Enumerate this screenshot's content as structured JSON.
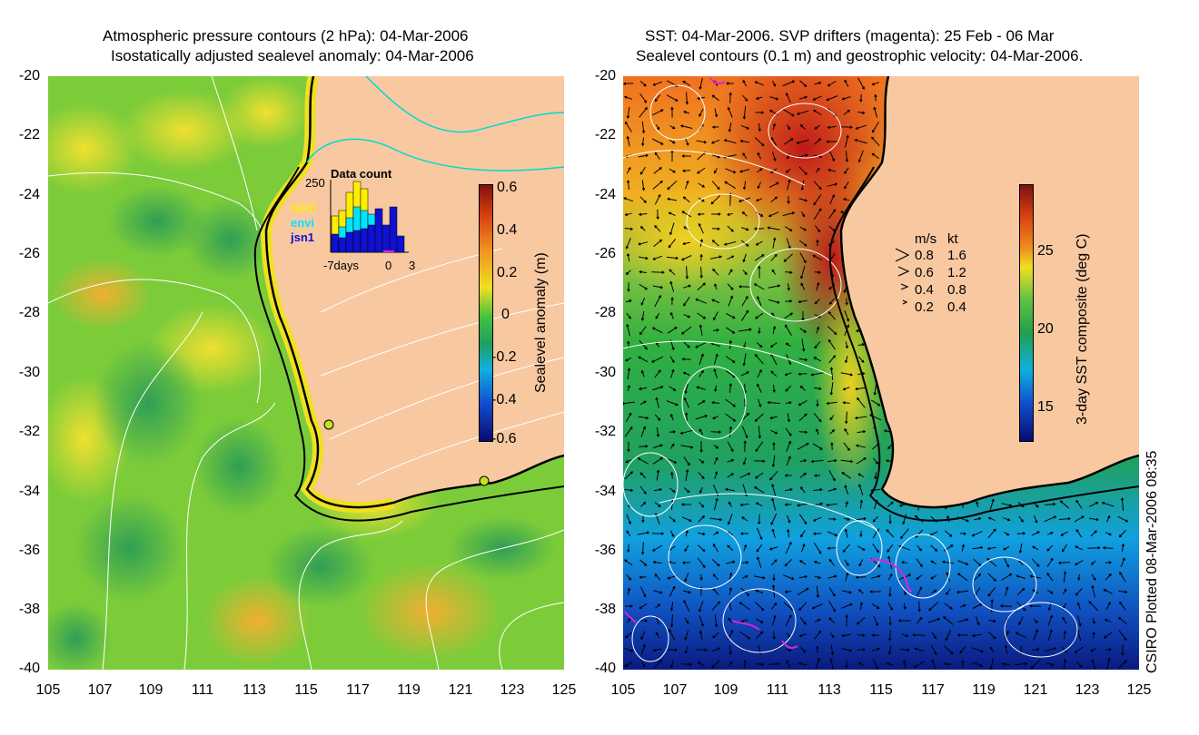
{
  "left_panel": {
    "title_line1": "Atmospheric pressure contours (2 hPa): 04-Mar-2006",
    "title_line2": "Isostatically adjusted sealevel anomaly: 04-Mar-2006",
    "colorbar_label": "Sealevel anomaly (m)",
    "colorbar_ticks": [
      "0.6",
      "0.4",
      "0.2",
      "0",
      "-0.2",
      "-0.4",
      "-0.6"
    ],
    "inset": {
      "title": "Data count",
      "y_max_label": "250",
      "satellites": [
        {
          "name": "GFO",
          "color": "#ffee00"
        },
        {
          "name": "envi",
          "color": "#00e5ff"
        },
        {
          "name": "jsn1",
          "color": "#1010d0"
        }
      ],
      "x_labels": [
        "-7days",
        "0",
        "3"
      ]
    }
  },
  "right_panel": {
    "title_line1": "SST: 04-Mar-2006. SVP drifters (magenta): 25 Feb - 06 Mar",
    "title_line2": "Sealevel contours (0.1 m) and geostrophic velocity: 04-Mar-2006.",
    "colorbar_label": "3-day SST composite (deg C)",
    "colorbar_ticks": [
      "25",
      "20",
      "15"
    ],
    "velocity_legend": {
      "header_ms": "m/s",
      "header_kt": "kt",
      "rows": [
        {
          "ms": "0.8",
          "kt": "1.6"
        },
        {
          "ms": "0.6",
          "kt": "1.2"
        },
        {
          "ms": "0.4",
          "kt": "0.8"
        },
        {
          "ms": "0.2",
          "kt": "0.4"
        }
      ]
    }
  },
  "axes": {
    "y_ticks": [
      "-20",
      "-22",
      "-24",
      "-26",
      "-28",
      "-30",
      "-32",
      "-34",
      "-36",
      "-38",
      "-40"
    ],
    "x_ticks": [
      "105",
      "107",
      "109",
      "111",
      "113",
      "115",
      "117",
      "119",
      "121",
      "123",
      "125"
    ]
  },
  "credit": "CSIRO Plotted 08-Mar-2006 08:35",
  "colors": {
    "land": "#f8c8a0",
    "coast": "#000000",
    "contour": "#ffffff",
    "drifter": "#e020e0",
    "pressure_contour_land": "#00d8d8"
  }
}
